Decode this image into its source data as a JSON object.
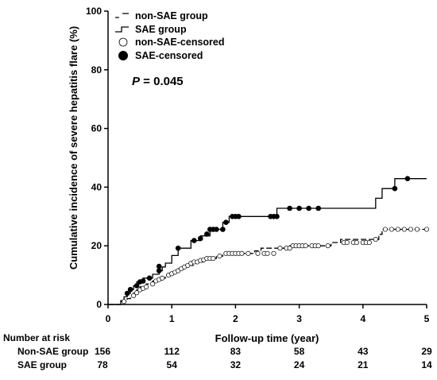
{
  "chart_data": {
    "type": "line",
    "chart_kind": "kaplan-meier cumulative incidence (step)",
    "xlabel": "Follow-up time (year)",
    "ylabel": "Cumulative incidence of severe hepatitis flare (%)",
    "xlim": [
      0,
      5
    ],
    "ylim": [
      0,
      100
    ],
    "xticks": [
      0,
      1,
      2,
      3,
      4,
      5
    ],
    "yticks": [
      0,
      20,
      40,
      60,
      80,
      100
    ],
    "grid": false,
    "legend_position": "top-left",
    "legend": [
      {
        "label": "non-SAE group",
        "style": "dashed-line"
      },
      {
        "label": "SAE group",
        "style": "solid-line"
      },
      {
        "label": "non-SAE-censored",
        "style": "open-circle"
      },
      {
        "label": "SAE-censored",
        "style": "filled-circle"
      }
    ],
    "annotation": {
      "italic": "P",
      "rest": " = 0.045"
    },
    "series": [
      {
        "name": "SAE group",
        "style": "solid",
        "color": "#000000",
        "steps": [
          [
            0,
            0
          ],
          [
            0.2,
            0
          ],
          [
            0.2,
            1.3
          ],
          [
            0.25,
            1.3
          ],
          [
            0.25,
            2.6
          ],
          [
            0.3,
            2.6
          ],
          [
            0.3,
            3.8
          ],
          [
            0.35,
            3.8
          ],
          [
            0.35,
            5.1
          ],
          [
            0.4,
            5.1
          ],
          [
            0.4,
            6.4
          ],
          [
            0.45,
            6.4
          ],
          [
            0.45,
            7.7
          ],
          [
            0.55,
            7.7
          ],
          [
            0.55,
            9.0
          ],
          [
            0.7,
            9.0
          ],
          [
            0.7,
            10.3
          ],
          [
            0.8,
            10.3
          ],
          [
            0.8,
            11.5
          ],
          [
            0.85,
            11.5
          ],
          [
            0.85,
            12.8
          ],
          [
            0.9,
            12.8
          ],
          [
            0.9,
            14.1
          ],
          [
            1.0,
            14.1
          ],
          [
            1.0,
            16.7
          ],
          [
            1.1,
            16.7
          ],
          [
            1.1,
            19.2
          ],
          [
            1.3,
            19.2
          ],
          [
            1.3,
            21.8
          ],
          [
            1.45,
            21.8
          ],
          [
            1.45,
            23.4
          ],
          [
            1.6,
            23.4
          ],
          [
            1.6,
            25.6
          ],
          [
            1.8,
            25.6
          ],
          [
            1.8,
            28.0
          ],
          [
            1.9,
            28.0
          ],
          [
            1.9,
            30.0
          ],
          [
            2.65,
            30.0
          ],
          [
            2.65,
            32.8
          ],
          [
            4.2,
            32.8
          ],
          [
            4.2,
            36.2
          ],
          [
            4.3,
            36.2
          ],
          [
            4.3,
            39.5
          ],
          [
            4.5,
            39.5
          ],
          [
            4.5,
            42.9
          ],
          [
            5.0,
            42.9
          ]
        ],
        "censored": [
          [
            0.3,
            3.8
          ],
          [
            0.35,
            5.1
          ],
          [
            0.45,
            6.4
          ],
          [
            0.5,
            7.7
          ],
          [
            0.55,
            8.0
          ],
          [
            0.65,
            9.0
          ],
          [
            0.8,
            11.5
          ],
          [
            0.8,
            13.0
          ],
          [
            1.1,
            19.2
          ],
          [
            1.35,
            21.8
          ],
          [
            1.45,
            22.5
          ],
          [
            1.55,
            24.0
          ],
          [
            1.6,
            25.6
          ],
          [
            1.65,
            25.6
          ],
          [
            1.7,
            25.6
          ],
          [
            1.8,
            25.6
          ],
          [
            1.85,
            28.0
          ],
          [
            1.95,
            30.0
          ],
          [
            2.0,
            30.0
          ],
          [
            2.05,
            30.0
          ],
          [
            2.55,
            30.0
          ],
          [
            2.6,
            30.0
          ],
          [
            2.65,
            30.0
          ],
          [
            2.85,
            32.8
          ],
          [
            3.0,
            32.8
          ],
          [
            3.15,
            32.8
          ],
          [
            3.3,
            32.8
          ],
          [
            4.5,
            39.5
          ],
          [
            4.7,
            42.9
          ]
        ]
      },
      {
        "name": "non-SAE group",
        "style": "dashed",
        "color": "#000000",
        "steps": [
          [
            0,
            0
          ],
          [
            0.2,
            0
          ],
          [
            0.2,
            1.0
          ],
          [
            0.3,
            1.0
          ],
          [
            0.3,
            2.0
          ],
          [
            0.35,
            2.0
          ],
          [
            0.35,
            3.0
          ],
          [
            0.4,
            3.0
          ],
          [
            0.4,
            4.0
          ],
          [
            0.45,
            4.0
          ],
          [
            0.45,
            5.0
          ],
          [
            0.5,
            5.0
          ],
          [
            0.5,
            6.0
          ],
          [
            0.6,
            6.0
          ],
          [
            0.6,
            7.0
          ],
          [
            0.7,
            7.0
          ],
          [
            0.7,
            8.0
          ],
          [
            0.8,
            8.0
          ],
          [
            0.8,
            9.0
          ],
          [
            0.9,
            9.0
          ],
          [
            0.9,
            10.0
          ],
          [
            1.0,
            10.0
          ],
          [
            1.0,
            11.0
          ],
          [
            1.1,
            11.0
          ],
          [
            1.1,
            12.2
          ],
          [
            1.2,
            12.2
          ],
          [
            1.2,
            13.3
          ],
          [
            1.35,
            13.3
          ],
          [
            1.35,
            14.5
          ],
          [
            1.5,
            14.5
          ],
          [
            1.5,
            15.7
          ],
          [
            1.7,
            15.7
          ],
          [
            1.7,
            16.5
          ],
          [
            1.8,
            16.5
          ],
          [
            1.8,
            17.4
          ],
          [
            2.3,
            17.4
          ],
          [
            2.3,
            18.3
          ],
          [
            2.4,
            18.3
          ],
          [
            2.4,
            19.2
          ],
          [
            2.85,
            19.2
          ],
          [
            2.85,
            20.0
          ],
          [
            3.5,
            20.0
          ],
          [
            3.5,
            21.1
          ],
          [
            3.65,
            21.1
          ],
          [
            3.65,
            22.2
          ],
          [
            4.25,
            22.2
          ],
          [
            4.25,
            23.9
          ],
          [
            4.3,
            23.9
          ],
          [
            4.3,
            25.6
          ],
          [
            5.0,
            25.6
          ]
        ],
        "censored": [
          [
            0.25,
            1.0
          ],
          [
            0.4,
            3.0
          ],
          [
            0.45,
            4.0
          ],
          [
            0.5,
            5.0
          ],
          [
            0.55,
            5.5
          ],
          [
            0.6,
            6.0
          ],
          [
            0.7,
            7.0
          ],
          [
            0.75,
            8.0
          ],
          [
            0.8,
            8.5
          ],
          [
            0.85,
            9.0
          ],
          [
            0.95,
            10.0
          ],
          [
            1.0,
            10.5
          ],
          [
            1.05,
            11.0
          ],
          [
            1.1,
            11.5
          ],
          [
            1.15,
            12.2
          ],
          [
            1.2,
            12.8
          ],
          [
            1.25,
            13.3
          ],
          [
            1.3,
            14.0
          ],
          [
            1.35,
            14.5
          ],
          [
            1.4,
            14.5
          ],
          [
            1.45,
            15.0
          ],
          [
            1.5,
            15.2
          ],
          [
            1.55,
            15.7
          ],
          [
            1.6,
            15.7
          ],
          [
            1.65,
            15.7
          ],
          [
            1.75,
            16.5
          ],
          [
            1.85,
            17.4
          ],
          [
            1.9,
            17.4
          ],
          [
            1.95,
            17.4
          ],
          [
            2.0,
            17.4
          ],
          [
            2.05,
            17.4
          ],
          [
            2.1,
            17.4
          ],
          [
            2.2,
            17.4
          ],
          [
            2.35,
            17.4
          ],
          [
            2.45,
            17.4
          ],
          [
            2.5,
            17.4
          ],
          [
            2.6,
            17.4
          ],
          [
            2.7,
            19.2
          ],
          [
            2.8,
            19.2
          ],
          [
            2.85,
            19.2
          ],
          [
            2.9,
            20.0
          ],
          [
            2.95,
            20.0
          ],
          [
            3.0,
            20.0
          ],
          [
            3.05,
            20.0
          ],
          [
            3.1,
            20.0
          ],
          [
            3.2,
            20.0
          ],
          [
            3.25,
            20.0
          ],
          [
            3.3,
            20.0
          ],
          [
            3.45,
            20.0
          ],
          [
            3.7,
            21.1
          ],
          [
            3.75,
            21.1
          ],
          [
            3.85,
            21.1
          ],
          [
            3.9,
            21.1
          ],
          [
            4.0,
            21.1
          ],
          [
            4.05,
            21.1
          ],
          [
            4.1,
            21.1
          ],
          [
            4.2,
            22.2
          ],
          [
            4.35,
            25.6
          ],
          [
            4.45,
            25.6
          ],
          [
            4.55,
            25.6
          ],
          [
            4.65,
            25.6
          ],
          [
            4.75,
            25.6
          ],
          [
            4.85,
            25.6
          ],
          [
            5.0,
            25.6
          ]
        ]
      }
    ]
  },
  "risk_table": {
    "heading": "Number at risk",
    "rows": [
      {
        "label": "Non-SAE group",
        "counts": [
          "156",
          "112",
          "83",
          "58",
          "43",
          "29"
        ]
      },
      {
        "label": "SAE group",
        "counts": [
          "78",
          "54",
          "32",
          "24",
          "21",
          "14"
        ]
      }
    ]
  }
}
